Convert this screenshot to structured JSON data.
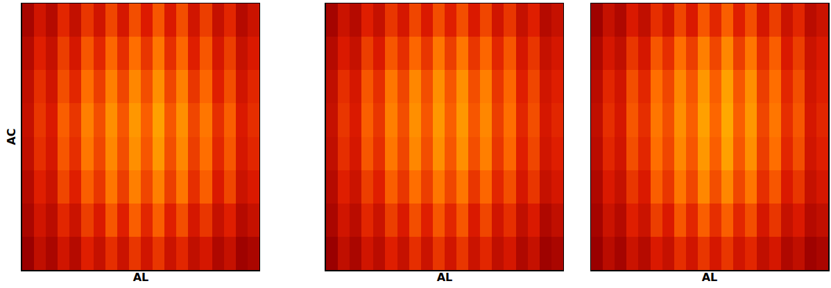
{
  "chart_data": [
    {
      "type": "heatmap",
      "xlabel": "AL",
      "ylabel": "AC",
      "tick_labels": false,
      "zlim": [
        0,
        100
      ],
      "cells": [
        [
          35,
          50,
          40,
          58,
          45,
          62,
          50,
          66,
          52,
          68,
          55,
          70,
          54,
          68,
          50,
          64,
          46,
          58,
          40,
          48
        ],
        [
          40,
          56,
          46,
          64,
          52,
          70,
          58,
          74,
          60,
          76,
          62,
          78,
          60,
          74,
          56,
          70,
          52,
          64,
          46,
          54
        ],
        [
          44,
          60,
          50,
          68,
          58,
          76,
          64,
          80,
          66,
          82,
          68,
          84,
          66,
          80,
          62,
          74,
          56,
          68,
          50,
          58
        ],
        [
          46,
          62,
          54,
          72,
          62,
          80,
          68,
          84,
          70,
          86,
          72,
          88,
          70,
          84,
          66,
          78,
          60,
          72,
          54,
          60
        ],
        [
          44,
          60,
          52,
          70,
          60,
          78,
          66,
          82,
          68,
          84,
          70,
          86,
          68,
          82,
          64,
          76,
          58,
          70,
          52,
          58
        ],
        [
          40,
          56,
          48,
          66,
          56,
          72,
          62,
          78,
          64,
          80,
          66,
          80,
          64,
          78,
          60,
          72,
          54,
          66,
          48,
          54
        ],
        [
          36,
          50,
          42,
          58,
          48,
          64,
          54,
          70,
          56,
          72,
          58,
          72,
          56,
          68,
          52,
          62,
          46,
          56,
          40,
          46
        ],
        [
          30,
          44,
          36,
          50,
          40,
          56,
          46,
          60,
          48,
          62,
          50,
          62,
          48,
          58,
          44,
          52,
          38,
          46,
          32,
          36
        ]
      ]
    },
    {
      "type": "heatmap",
      "xlabel": "AL",
      "tick_labels": false,
      "zlim": [
        0,
        100
      ],
      "cells": [
        [
          34,
          48,
          40,
          56,
          46,
          62,
          52,
          66,
          54,
          68,
          56,
          68,
          54,
          66,
          50,
          62,
          46,
          56,
          40,
          46
        ],
        [
          40,
          54,
          46,
          64,
          54,
          70,
          60,
          74,
          62,
          78,
          64,
          78,
          62,
          74,
          58,
          70,
          52,
          62,
          46,
          52
        ],
        [
          44,
          60,
          52,
          70,
          60,
          78,
          66,
          82,
          68,
          84,
          70,
          84,
          68,
          80,
          62,
          74,
          56,
          66,
          50,
          56
        ],
        [
          46,
          62,
          54,
          72,
          62,
          80,
          68,
          84,
          70,
          86,
          72,
          86,
          70,
          82,
          64,
          76,
          58,
          68,
          52,
          58
        ],
        [
          44,
          60,
          52,
          70,
          60,
          78,
          66,
          82,
          68,
          84,
          70,
          84,
          68,
          80,
          62,
          74,
          56,
          66,
          50,
          56
        ],
        [
          40,
          56,
          48,
          64,
          56,
          72,
          62,
          76,
          64,
          78,
          66,
          78,
          62,
          74,
          58,
          68,
          52,
          62,
          46,
          52
        ],
        [
          36,
          50,
          42,
          58,
          48,
          64,
          54,
          68,
          56,
          70,
          58,
          70,
          54,
          66,
          50,
          60,
          44,
          54,
          38,
          44
        ],
        [
          30,
          44,
          36,
          50,
          42,
          56,
          46,
          60,
          48,
          62,
          50,
          62,
          48,
          58,
          44,
          52,
          38,
          46,
          32,
          36
        ]
      ]
    },
    {
      "type": "heatmap",
      "xlabel": "AL",
      "tick_labels": false,
      "zlim": [
        0,
        100
      ],
      "cells": [
        [
          32,
          46,
          38,
          54,
          44,
          60,
          50,
          66,
          54,
          70,
          58,
          72,
          56,
          68,
          52,
          64,
          48,
          58,
          42,
          48
        ],
        [
          38,
          52,
          44,
          62,
          52,
          70,
          60,
          76,
          64,
          80,
          66,
          82,
          64,
          78,
          60,
          72,
          54,
          64,
          48,
          54
        ],
        [
          42,
          58,
          50,
          68,
          58,
          76,
          66,
          82,
          70,
          86,
          72,
          88,
          70,
          84,
          64,
          76,
          58,
          68,
          50,
          56
        ],
        [
          44,
          60,
          52,
          70,
          60,
          78,
          68,
          84,
          72,
          88,
          74,
          90,
          72,
          86,
          66,
          78,
          60,
          70,
          52,
          58
        ],
        [
          42,
          58,
          50,
          68,
          58,
          76,
          66,
          82,
          70,
          86,
          72,
          88,
          70,
          84,
          64,
          76,
          58,
          68,
          50,
          56
        ],
        [
          38,
          54,
          46,
          62,
          54,
          72,
          62,
          78,
          66,
          82,
          68,
          82,
          66,
          78,
          60,
          70,
          54,
          62,
          46,
          52
        ],
        [
          34,
          48,
          40,
          56,
          48,
          64,
          54,
          70,
          58,
          72,
          60,
          72,
          58,
          68,
          52,
          62,
          46,
          54,
          40,
          44
        ],
        [
          30,
          42,
          34,
          48,
          40,
          54,
          46,
          60,
          50,
          62,
          52,
          62,
          50,
          58,
          44,
          52,
          38,
          44,
          32,
          36
        ]
      ]
    }
  ]
}
